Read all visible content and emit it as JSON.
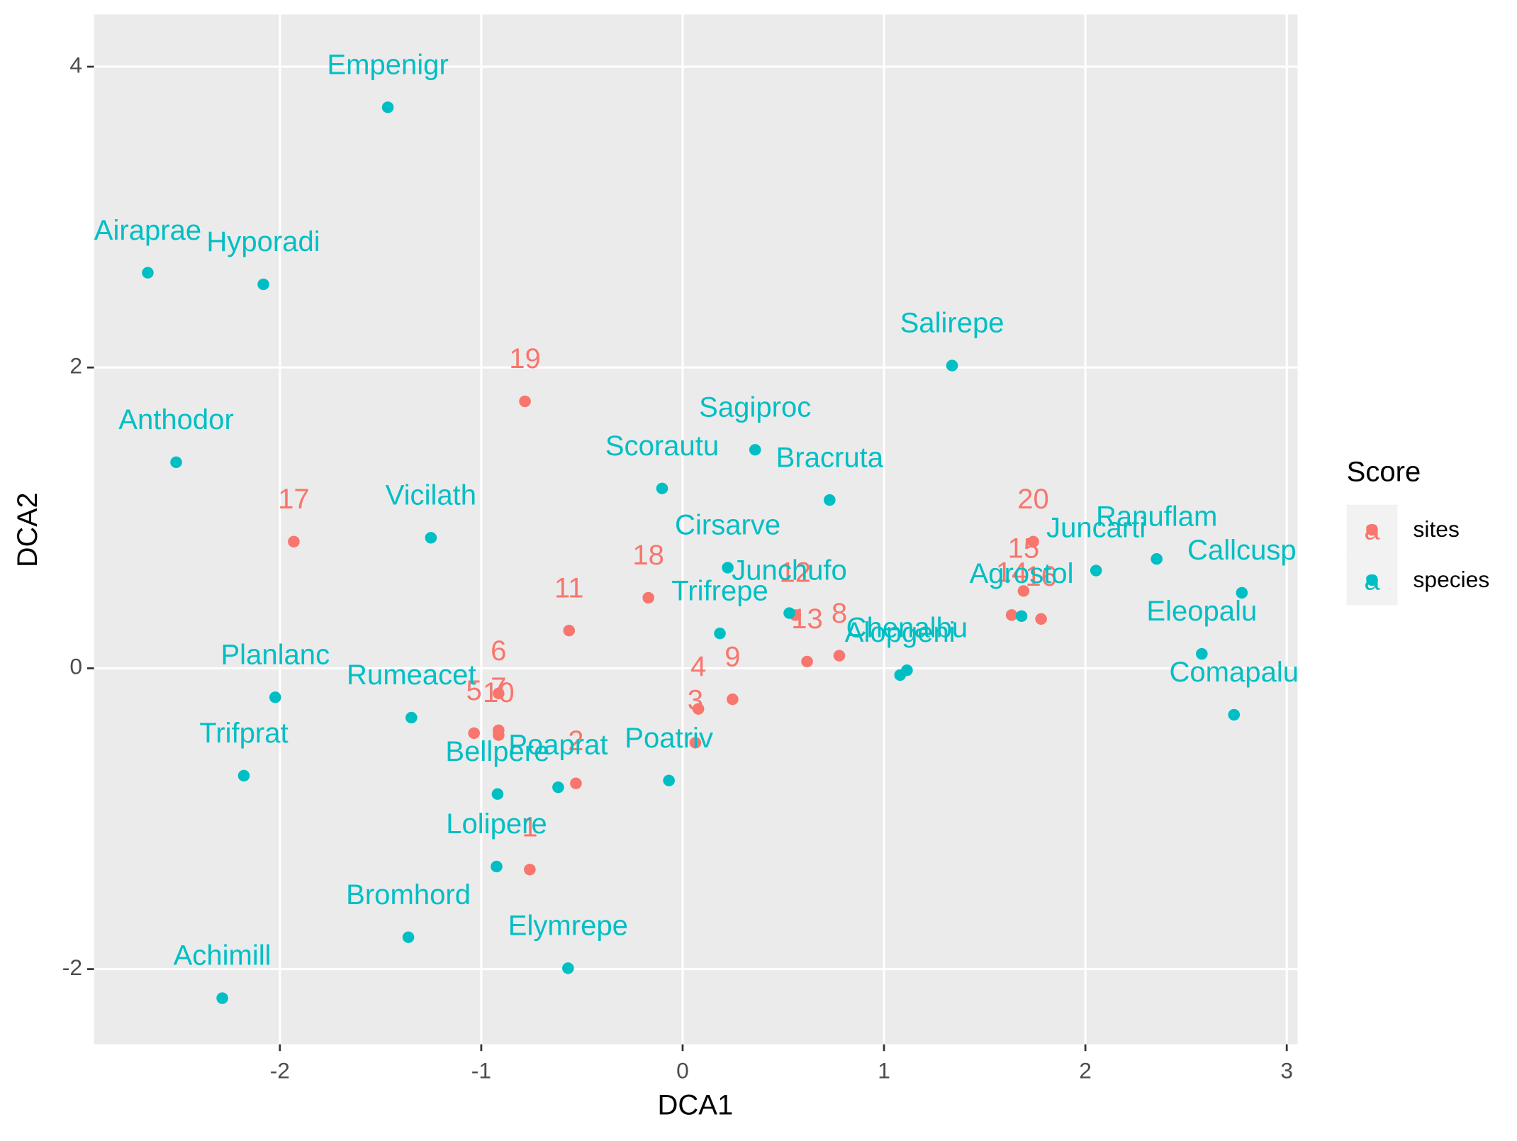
{
  "chart_data": {
    "type": "scatter",
    "x_label": "DCA1",
    "y_label": "DCA2",
    "legend_title": "Score",
    "xlim": [
      -2.923,
      3.054
    ],
    "ylim": [
      -2.5,
      4.347
    ],
    "xticks": [
      -2,
      -1,
      0,
      1,
      2,
      3
    ],
    "yticks": [
      -2,
      0,
      2,
      4
    ],
    "grid": true,
    "legend": "right",
    "series": [
      {
        "name": "sites",
        "color": "#F8766D",
        "labels": [
          "19",
          "17",
          "18",
          "11",
          "6",
          "7",
          "5",
          "10",
          "2",
          "1",
          "4",
          "3",
          "9",
          "12",
          "13",
          "8",
          "20",
          "15",
          "14",
          "16"
        ],
        "x": [
          -0.783,
          -1.931,
          -0.17,
          -0.564,
          -0.914,
          -0.914,
          -1.036,
          -0.914,
          -0.53,
          -0.759,
          0.078,
          0.063,
          0.248,
          0.559,
          0.618,
          0.778,
          1.741,
          1.693,
          1.634,
          1.78
        ],
        "values": [
          1.775,
          0.842,
          0.469,
          0.251,
          -0.167,
          -0.412,
          -0.431,
          -0.444,
          -0.765,
          -1.338,
          -0.27,
          -0.495,
          -0.206,
          0.354,
          0.045,
          0.084,
          0.842,
          0.514,
          0.354,
          0.328
        ]
      },
      {
        "name": "species",
        "color": "#00BFC4",
        "labels": [
          "Empenigr",
          "Airaprae",
          "Hyporadi",
          "Salirepe",
          "Anthodor",
          "Sagiproc",
          "Scorautu",
          "Bracruta",
          "Vicilath",
          "Cirsarve",
          "Juncarti",
          "Ranuflam",
          "Callcusp",
          "Junchufo",
          "Trifrepe",
          "Agrostol",
          "Chenalbu",
          "Alopgeni",
          "Eleopalu",
          "Comapalu",
          "Planlanc",
          "Rumeacet",
          "Trifprat",
          "Bellpere",
          "Poaprat",
          "Poatriv",
          "Lolipere",
          "Bromhord",
          "Elymrepe",
          "Achimill"
        ],
        "x": [
          -1.464,
          -2.656,
          -2.082,
          1.338,
          -2.515,
          0.36,
          -0.102,
          0.73,
          -1.25,
          0.224,
          2.053,
          2.354,
          2.777,
          0.53,
          0.185,
          1.683,
          1.114,
          1.08,
          2.578,
          2.738,
          -2.023,
          -1.347,
          -2.179,
          -0.919,
          -0.618,
          -0.068,
          -0.924,
          -1.362,
          -0.569,
          -2.286
        ],
        "values": [
          3.73,
          2.63,
          2.553,
          2.013,
          1.37,
          1.453,
          1.196,
          1.119,
          0.868,
          0.669,
          0.65,
          0.727,
          0.502,
          0.367,
          0.232,
          0.347,
          -0.013,
          -0.045,
          0.096,
          -0.309,
          -0.193,
          -0.328,
          -0.714,
          -0.836,
          -0.791,
          -0.746,
          -1.318,
          -1.788,
          -1.994,
          -2.193
        ]
      }
    ]
  }
}
